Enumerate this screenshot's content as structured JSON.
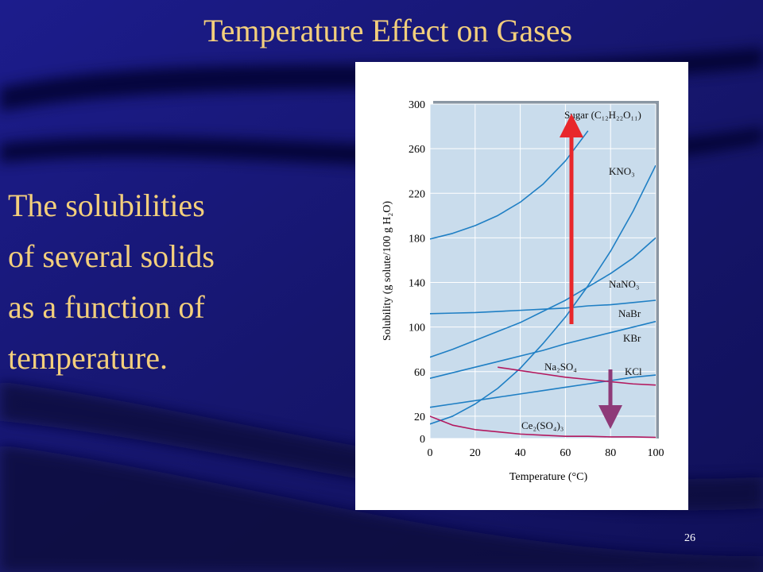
{
  "slide": {
    "title": "Temperature Effect on Gases",
    "body": [
      "The solubilities",
      "of several solids",
      "as a function of",
      "temperature."
    ],
    "page_number": "26"
  },
  "chart_data": {
    "type": "line",
    "xlabel": "Temperature (°C)",
    "ylabel": "Solubility (g solute/100 g H₂O)",
    "x": [
      0,
      10,
      20,
      30,
      40,
      50,
      60,
      70,
      80,
      90,
      100
    ],
    "xlim": [
      0,
      100
    ],
    "xticks": [
      0,
      20,
      40,
      60,
      80,
      100
    ],
    "ylim": [
      0,
      300
    ],
    "yticks": [
      0,
      20,
      60,
      100,
      140,
      180,
      220,
      260,
      300
    ],
    "grid": true,
    "series": [
      {
        "name": "Sugar (C₁₂H₂₂O₁₁)",
        "color": "#1f7fc4",
        "values": [
          179,
          184,
          191,
          200,
          212,
          228,
          249,
          276,
          null,
          null,
          null
        ]
      },
      {
        "name": "KNO₃",
        "color": "#1f7fc4",
        "values": [
          13,
          20,
          31,
          45,
          63,
          85,
          109,
          137,
          168,
          204,
          245
        ]
      },
      {
        "name": "NaNO₃",
        "color": "#1f7fc4",
        "values": [
          73,
          80,
          88,
          96,
          104,
          114,
          124,
          136,
          148,
          162,
          180
        ]
      },
      {
        "name": "NaBr",
        "color": "#1f7fc4",
        "values": [
          112,
          112.5,
          113,
          114,
          115,
          116,
          117,
          119,
          120,
          122,
          124
        ]
      },
      {
        "name": "KBr",
        "color": "#1f7fc4",
        "values": [
          54,
          59,
          64,
          69,
          74,
          79,
          85,
          90,
          95,
          100,
          105
        ]
      },
      {
        "name": "KCl",
        "color": "#1f7fc4",
        "values": [
          28,
          31,
          34,
          37,
          40,
          43,
          46,
          49,
          52,
          55,
          57
        ]
      },
      {
        "name": "Na₂SO₄",
        "color": "#b3195f",
        "values": [
          null,
          null,
          null,
          64,
          61,
          58,
          55,
          53,
          51,
          49,
          48
        ]
      },
      {
        "name": "Ce₂(SO₄)₃",
        "color": "#b3195f",
        "values": [
          20,
          12,
          8,
          6,
          4,
          3,
          2,
          2,
          1.5,
          1.5,
          1
        ]
      }
    ]
  }
}
